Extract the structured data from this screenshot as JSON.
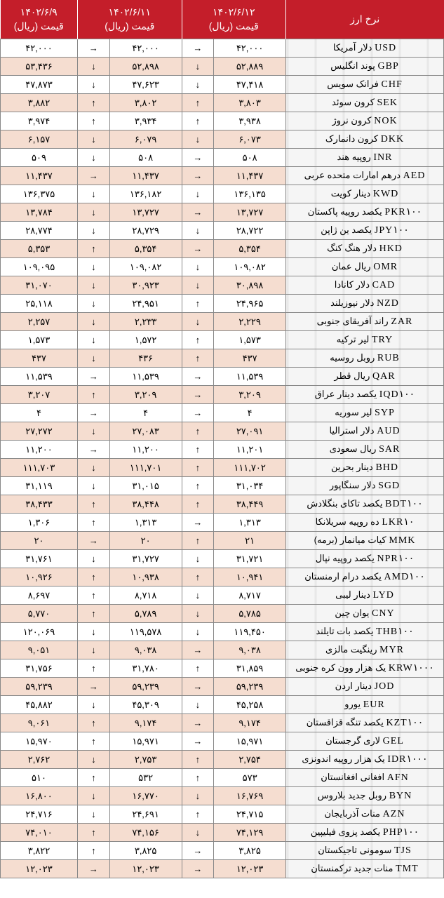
{
  "header": {
    "name": "نرخ ارز",
    "dates": [
      "۱۴۰۲/۶/۱۲",
      "۱۴۰۲/۶/۱۱",
      "۱۴۰۲/۶/۹"
    ],
    "priceLabel": "قیمت (ریال)"
  },
  "colors": {
    "headerBg": "#c41e2a",
    "headerText": "#ffffff",
    "altRow": "#f5ddd0",
    "border": "#888888"
  },
  "rows": [
    {
      "code": "USD",
      "name": "دلار آمریکا",
      "p1": "۴۲,۰۰۰",
      "a1": "→",
      "p2": "۴۲,۰۰۰",
      "a2": "→",
      "p3": "۴۲,۰۰۰",
      "alt": false
    },
    {
      "code": "GBP",
      "name": "پوند انگلیس",
      "p1": "۵۲,۸۸۹",
      "a1": "↓",
      "p2": "۵۲,۸۹۸",
      "a2": "↓",
      "p3": "۵۳,۴۳۶",
      "alt": true
    },
    {
      "code": "CHF",
      "name": "فرانک سویس",
      "p1": "۴۷,۴۱۸",
      "a1": "↓",
      "p2": "۴۷,۶۲۳",
      "a2": "↓",
      "p3": "۴۷,۸۷۳",
      "alt": false
    },
    {
      "code": "SEK",
      "name": "کرون سوئد",
      "p1": "۳,۸۰۳",
      "a1": "↑",
      "p2": "۳,۸۰۲",
      "a2": "↑",
      "p3": "۳,۸۸۲",
      "alt": true
    },
    {
      "code": "NOK",
      "name": "کرون نروژ",
      "p1": "۳,۹۳۸",
      "a1": "↑",
      "p2": "۳,۹۳۴",
      "a2": "↑",
      "p3": "۳,۹۷۴",
      "alt": false
    },
    {
      "code": "DKK",
      "name": "کرون دانمارک",
      "p1": "۶,۰۷۳",
      "a1": "↓",
      "p2": "۶,۰۷۹",
      "a2": "↓",
      "p3": "۶,۱۵۷",
      "alt": true
    },
    {
      "code": "INR",
      "name": "روپیه هند",
      "p1": "۵۰۸",
      "a1": "→",
      "p2": "۵۰۸",
      "a2": "↓",
      "p3": "۵۰۹",
      "alt": false
    },
    {
      "code": "AED",
      "name": "درهم امارات متحده عربی",
      "p1": "۱۱,۴۳۷",
      "a1": "→",
      "p2": "۱۱,۴۳۷",
      "a2": "→",
      "p3": "۱۱,۴۳۷",
      "alt": true
    },
    {
      "code": "KWD",
      "name": "دینار کویت",
      "p1": "۱۳۶,۱۳۵",
      "a1": "↓",
      "p2": "۱۳۶,۱۸۲",
      "a2": "↓",
      "p3": "۱۳۶,۳۷۵",
      "alt": false
    },
    {
      "code": "PKR۱۰۰",
      "name": "یکصد روپیه پاکستان",
      "p1": "۱۳,۷۲۷",
      "a1": "→",
      "p2": "۱۳,۷۲۷",
      "a2": "↓",
      "p3": "۱۳,۷۸۴",
      "alt": true
    },
    {
      "code": "JPY۱۰۰",
      "name": "یکصد ین ژاپن",
      "p1": "۲۸,۷۲۲",
      "a1": "↓",
      "p2": "۲۸,۷۲۹",
      "a2": "↓",
      "p3": "۲۸,۷۷۴",
      "alt": false
    },
    {
      "code": "HKD",
      "name": "دلار هنگ کنگ",
      "p1": "۵,۳۵۴",
      "a1": "→",
      "p2": "۵,۳۵۴",
      "a2": "↑",
      "p3": "۵,۳۵۳",
      "alt": true
    },
    {
      "code": "OMR",
      "name": "ریال عمان",
      "p1": "۱۰۹,۰۸۲",
      "a1": "↓",
      "p2": "۱۰۹,۰۸۲",
      "a2": "↓",
      "p3": "۱۰۹,۰۹۵",
      "alt": false
    },
    {
      "code": "CAD",
      "name": "دلار کانادا",
      "p1": "۳۰,۸۹۸",
      "a1": "↓",
      "p2": "۳۰,۹۲۳",
      "a2": "↓",
      "p3": "۳۱,۰۷۰",
      "alt": true
    },
    {
      "code": "NZD",
      "name": "دلار نیوزیلند",
      "p1": "۲۴,۹۶۵",
      "a1": "↑",
      "p2": "۲۴,۹۵۱",
      "a2": "↓",
      "p3": "۲۵,۱۱۸",
      "alt": false
    },
    {
      "code": "ZAR",
      "name": "راند آفریقای جنوبی",
      "p1": "۲,۲۲۹",
      "a1": "↓",
      "p2": "۲,۲۳۳",
      "a2": "↓",
      "p3": "۲,۲۵۷",
      "alt": true
    },
    {
      "code": "TRY",
      "name": "لیر ترکیه",
      "p1": "۱,۵۷۳",
      "a1": "↑",
      "p2": "۱,۵۷۲",
      "a2": "↓",
      "p3": "۱,۵۷۳",
      "alt": false
    },
    {
      "code": "RUB",
      "name": "روبل روسیه",
      "p1": "۴۳۷",
      "a1": "↑",
      "p2": "۴۳۶",
      "a2": "↓",
      "p3": "۴۳۷",
      "alt": true
    },
    {
      "code": "QAR",
      "name": "ریال قطر",
      "p1": "۱۱,۵۳۹",
      "a1": "→",
      "p2": "۱۱,۵۳۹",
      "a2": "→",
      "p3": "۱۱,۵۳۹",
      "alt": false
    },
    {
      "code": "IQD۱۰۰",
      "name": "یکصد دینار عراق",
      "p1": "۳,۲۰۹",
      "a1": "→",
      "p2": "۳,۲۰۹",
      "a2": "↑",
      "p3": "۳,۲۰۷",
      "alt": true
    },
    {
      "code": "SYP",
      "name": "لیر سوریه",
      "p1": "۴",
      "a1": "→",
      "p2": "۴",
      "a2": "→",
      "p3": "۴",
      "alt": false
    },
    {
      "code": "AUD",
      "name": "دلار استرالیا",
      "p1": "۲۷,۰۹۱",
      "a1": "↑",
      "p2": "۲۷,۰۸۳",
      "a2": "↓",
      "p3": "۲۷,۲۷۲",
      "alt": true
    },
    {
      "code": "SAR",
      "name": "ریال سعودی",
      "p1": "۱۱,۲۰۱",
      "a1": "↑",
      "p2": "۱۱,۲۰۰",
      "a2": "→",
      "p3": "۱۱,۲۰۰",
      "alt": false
    },
    {
      "code": "BHD",
      "name": "دینار بحرین",
      "p1": "۱۱۱,۷۰۲",
      "a1": "↑",
      "p2": "۱۱۱,۷۰۱",
      "a2": "↓",
      "p3": "۱۱۱,۷۰۳",
      "alt": true
    },
    {
      "code": "SGD",
      "name": "دلار سنگاپور",
      "p1": "۳۱,۰۳۴",
      "a1": "↑",
      "p2": "۳۱,۰۱۵",
      "a2": "↓",
      "p3": "۳۱,۱۱۹",
      "alt": false
    },
    {
      "code": "BDT۱۰۰",
      "name": "یکصد تاکای بنگلادش",
      "p1": "۳۸,۴۴۹",
      "a1": "↑",
      "p2": "۳۸,۴۴۸",
      "a2": "↑",
      "p3": "۳۸,۴۳۳",
      "alt": true
    },
    {
      "code": "LKR۱۰",
      "name": "ده روپیه سریلانکا",
      "p1": "۱,۳۱۳",
      "a1": "→",
      "p2": "۱,۳۱۳",
      "a2": "↑",
      "p3": "۱,۳۰۶",
      "alt": false
    },
    {
      "code": "MMK",
      "name": "کیات میانمار (برمه)",
      "p1": "۲۱",
      "a1": "↑",
      "p2": "۲۰",
      "a2": "→",
      "p3": "۲۰",
      "alt": true
    },
    {
      "code": "NPR۱۰۰",
      "name": "یکصد روپیه نپال",
      "p1": "۳۱,۷۲۱",
      "a1": "↓",
      "p2": "۳۱,۷۲۷",
      "a2": "↓",
      "p3": "۳۱,۷۶۱",
      "alt": false
    },
    {
      "code": "AMD۱۰۰",
      "name": "یکصد درام ارمنستان",
      "p1": "۱۰,۹۴۱",
      "a1": "↑",
      "p2": "۱۰,۹۳۸",
      "a2": "↑",
      "p3": "۱۰,۹۲۶",
      "alt": true
    },
    {
      "code": "LYD",
      "name": "دینار لیبی",
      "p1": "۸,۷۱۷",
      "a1": "↓",
      "p2": "۸,۷۱۸",
      "a2": "↑",
      "p3": "۸,۶۹۷",
      "alt": false
    },
    {
      "code": "CNY",
      "name": "یوان چین",
      "p1": "۵,۷۸۵",
      "a1": "↓",
      "p2": "۵,۷۸۹",
      "a2": "↑",
      "p3": "۵,۷۷۰",
      "alt": true
    },
    {
      "code": "THB۱۰۰",
      "name": "یکصد بات تایلند",
      "p1": "۱۱۹,۴۵۰",
      "a1": "↓",
      "p2": "۱۱۹,۵۷۸",
      "a2": "↓",
      "p3": "۱۲۰,۰۶۹",
      "alt": false
    },
    {
      "code": "MYR",
      "name": "رینگیت مالزی",
      "p1": "۹,۰۳۸",
      "a1": "→",
      "p2": "۹,۰۳۸",
      "a2": "↓",
      "p3": "۹,۰۵۱",
      "alt": true
    },
    {
      "code": "KRW۱۰۰۰",
      "name": "یک هزار وون کره جنوبی",
      "p1": "۳۱,۸۵۹",
      "a1": "↑",
      "p2": "۳۱,۷۸۰",
      "a2": "↑",
      "p3": "۳۱,۷۵۶",
      "alt": false
    },
    {
      "code": "JOD",
      "name": "دینار اردن",
      "p1": "۵۹,۲۳۹",
      "a1": "→",
      "p2": "۵۹,۲۳۹",
      "a2": "→",
      "p3": "۵۹,۲۳۹",
      "alt": true
    },
    {
      "code": "EUR",
      "name": "یورو",
      "p1": "۴۵,۲۵۸",
      "a1": "↓",
      "p2": "۴۵,۳۰۹",
      "a2": "↓",
      "p3": "۴۵,۸۸۲",
      "alt": false
    },
    {
      "code": "KZT۱۰۰",
      "name": "یکصد تنگه قزاقستان",
      "p1": "۹,۱۷۴",
      "a1": "→",
      "p2": "۹,۱۷۴",
      "a2": "↑",
      "p3": "۹,۰۶۱",
      "alt": true
    },
    {
      "code": "GEL",
      "name": "لاری گرجستان",
      "p1": "۱۵,۹۷۱",
      "a1": "→",
      "p2": "۱۵,۹۷۱",
      "a2": "↑",
      "p3": "۱۵,۹۷۰",
      "alt": false
    },
    {
      "code": "IDR۱۰۰۰",
      "name": "یک هزار روپیه اندونزی",
      "p1": "۲,۷۵۴",
      "a1": "↑",
      "p2": "۲,۷۵۳",
      "a2": "↓",
      "p3": "۲,۷۶۲",
      "alt": true
    },
    {
      "code": "AFN",
      "name": "افغانی افغانستان",
      "p1": "۵۷۳",
      "a1": "↑",
      "p2": "۵۳۲",
      "a2": "↑",
      "p3": "۵۱۰",
      "alt": false
    },
    {
      "code": "BYN",
      "name": "روبل جدید بلاروس",
      "p1": "۱۶,۷۶۹",
      "a1": "↓",
      "p2": "۱۶,۷۷۰",
      "a2": "↓",
      "p3": "۱۶,۸۰۰",
      "alt": true
    },
    {
      "code": "AZN",
      "name": "منات آذربایجان",
      "p1": "۲۴,۷۱۵",
      "a1": "↑",
      "p2": "۲۴,۶۹۱",
      "a2": "↓",
      "p3": "۲۴,۷۱۶",
      "alt": false
    },
    {
      "code": "PHP۱۰۰",
      "name": "یکصد پزوی فیلیپین",
      "p1": "۷۴,۱۲۹",
      "a1": "↓",
      "p2": "۷۴,۱۵۶",
      "a2": "↑",
      "p3": "۷۴,۰۱۰",
      "alt": true
    },
    {
      "code": "TJS",
      "name": "سومونی تاجیکستان",
      "p1": "۳,۸۲۵",
      "a1": "→",
      "p2": "۳,۸۲۵",
      "a2": "↑",
      "p3": "۳,۸۲۲",
      "alt": false
    },
    {
      "code": "TMT",
      "name": "منات جدید ترکمنستان",
      "p1": "۱۲,۰۲۳",
      "a1": "→",
      "p2": "۱۲,۰۲۳",
      "a2": "→",
      "p3": "۱۲,۰۲۳",
      "alt": true
    }
  ]
}
